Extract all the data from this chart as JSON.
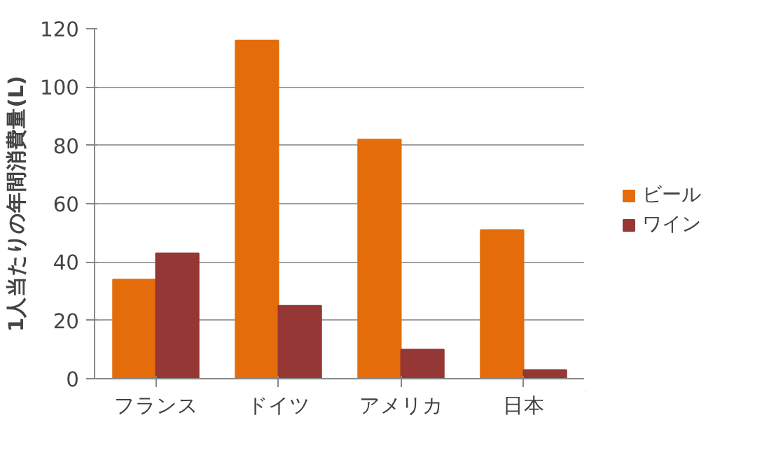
{
  "chart_data": {
    "type": "bar",
    "ylabel": "1人当たりの年間消費量(L)",
    "categories": [
      "フランス",
      "ドイツ",
      "アメリカ",
      "日本"
    ],
    "series": [
      {
        "name": "ビール",
        "color": "#e46c0a",
        "values": [
          34,
          116,
          82,
          51
        ]
      },
      {
        "name": "ワイン",
        "color": "#953735",
        "values": [
          43,
          25,
          10,
          3
        ]
      }
    ],
    "ylim": [
      0,
      120
    ],
    "yticks": [
      0,
      20,
      40,
      60,
      80,
      100,
      120
    ],
    "grid": "y",
    "legend": "right"
  }
}
